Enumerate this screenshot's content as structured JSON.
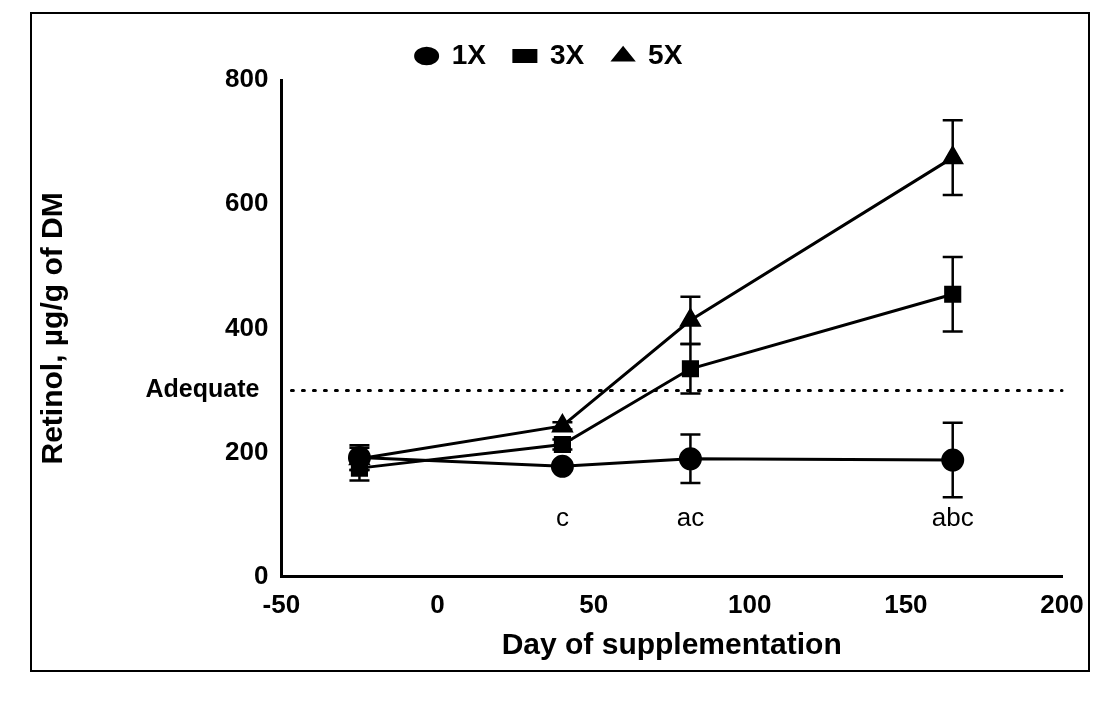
{
  "chart_data": {
    "type": "line",
    "x_label": "Day of supplementation",
    "y_label": "Retinol, µg/g of DM",
    "x": [
      -25,
      40,
      81,
      165
    ],
    "series": [
      {
        "name": "1X",
        "color": "#000000",
        "marker": "circle",
        "values": [
          192,
          178,
          190,
          188
        ],
        "errors": [
          20,
          6,
          39,
          60
        ]
      },
      {
        "name": "3X",
        "color": "#000000",
        "marker": "square",
        "values": [
          175,
          213,
          335,
          455
        ],
        "errors": [
          20,
          8,
          40,
          60
        ]
      },
      {
        "name": "5X",
        "color": "#000000",
        "marker": "triangle",
        "values": [
          190,
          243,
          413,
          675
        ],
        "errors": [
          18,
          6,
          38,
          60
        ]
      }
    ],
    "xlim": [
      -50,
      200
    ],
    "xticks": [
      -50,
      0,
      50,
      100,
      150,
      200
    ],
    "ylim": [
      0,
      800
    ],
    "yticks": [
      0,
      200,
      400,
      600,
      800
    ],
    "grid": false,
    "legend": "top",
    "reference_lines": [
      {
        "value": 300,
        "label": "Adequate",
        "line_style": "dotted"
      }
    ],
    "annotations": [
      {
        "x": 40,
        "text": "c"
      },
      {
        "x": 81,
        "text": "ac"
      },
      {
        "x": 165,
        "text": "abc"
      }
    ]
  }
}
